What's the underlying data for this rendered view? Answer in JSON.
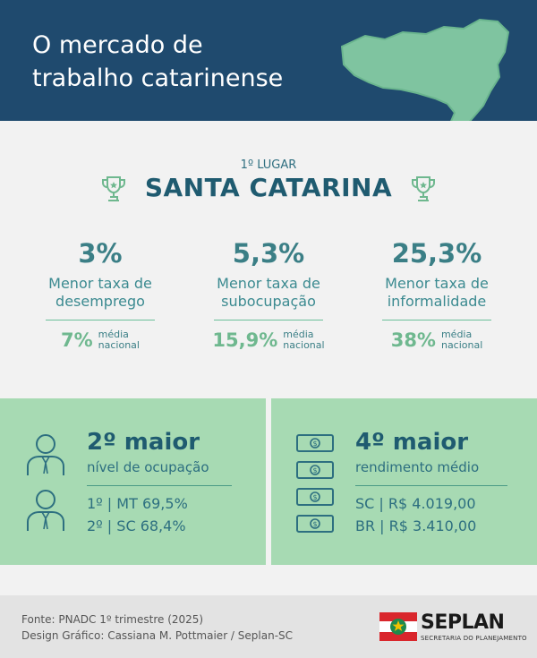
{
  "header": {
    "title_line1": "O mercado de",
    "title_line2": "trabalho catarinense"
  },
  "intro": {
    "rank": "1º LUGAR",
    "state": "SANTA CATARINA"
  },
  "stats": [
    {
      "value": "3%",
      "label1": "Menor taxa de",
      "label2": "desemprego",
      "national_value": "7%",
      "national_label1": "média",
      "national_label2": "nacional"
    },
    {
      "value": "5,3%",
      "label1": "Menor taxa de",
      "label2": "subocupação",
      "national_value": "15,9%",
      "national_label1": "média",
      "national_label2": "nacional"
    },
    {
      "value": "25,3%",
      "label1": "Menor taxa de",
      "label2": "informalidade",
      "national_value": "38%",
      "national_label1": "média",
      "national_label2": "nacional"
    }
  ],
  "occupation": {
    "title": "2º maior",
    "subtitle": "nível de ocupação",
    "row1": "1º  |  MT  69,5%",
    "row2": "2º  |  SC  68,4%"
  },
  "income": {
    "title": "4º maior",
    "subtitle": "rendimento médio",
    "row1": "SC  |  R$ 4.019,00",
    "row2": "BR  |  R$ 3.410,00"
  },
  "footer": {
    "source": "Fonte: PNADC 1º trimestre (2025)",
    "credit": "Design Gráfico: Cassiana M. Pottmaier / Seplan-SC",
    "logo_name": "SEPLAN",
    "logo_sub": "SECRETARIA DO PLANEJAMENTO"
  },
  "colors": {
    "header": "#1f4a6e",
    "accent_green": "#a7dab3",
    "teal_text": "#1f5b70",
    "background": "#f2f2f2"
  },
  "icons": [
    "map-icon",
    "trophy-icon",
    "person-icon",
    "banknote-icon",
    "flag-icon"
  ]
}
